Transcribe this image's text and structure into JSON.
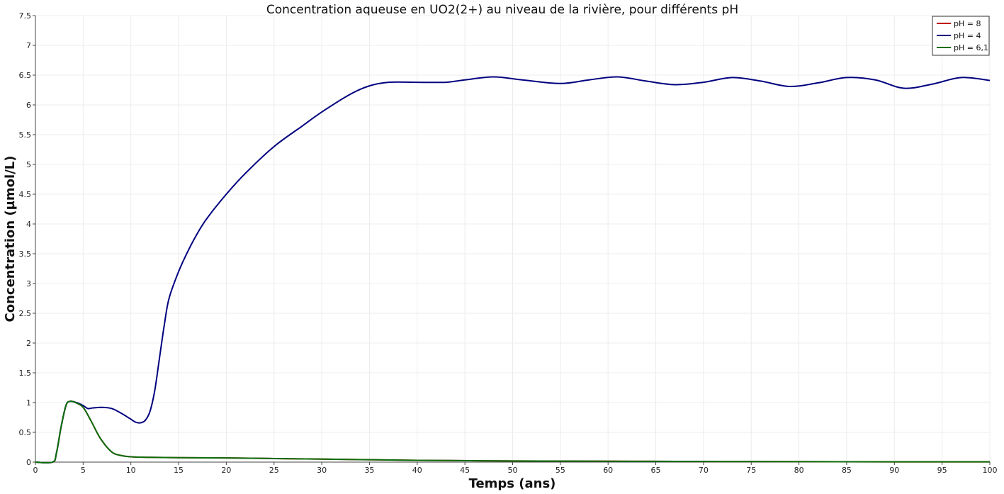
{
  "chart_data": {
    "type": "line",
    "title": "Concentration aqueuse en UO2(2+) au niveau de la rivière, pour différents pH",
    "xlabel": "Temps (ans)",
    "ylabel": "Concentration (µmol/L)",
    "xlim": [
      0,
      100
    ],
    "ylim": [
      0,
      7.5
    ],
    "x_ticks": [
      "0",
      "5",
      "10",
      "15",
      "20",
      "25",
      "30",
      "35",
      "40",
      "45",
      "50",
      "55",
      "60",
      "65",
      "70",
      "75",
      "80",
      "85",
      "90",
      "95",
      "100"
    ],
    "y_ticks": [
      "0",
      "0.5",
      "1",
      "1.5",
      "2",
      "2.5",
      "3",
      "3.5",
      "4",
      "4.5",
      "5",
      "5.5",
      "6",
      "6.5",
      "7",
      "7.5"
    ],
    "grid": true,
    "legend_position": "top-right",
    "series": [
      {
        "name": "pH = 8",
        "color": "#c00000",
        "x": [
          0,
          1.8,
          2.2,
          2.7,
          3.2,
          3.6,
          4.2,
          5,
          5.8,
          6.8,
          8,
          9,
          10,
          12,
          15,
          20,
          25,
          30,
          35,
          40,
          50,
          60,
          70,
          80,
          90,
          100
        ],
        "y": [
          0,
          0,
          0.15,
          0.6,
          0.95,
          1.02,
          1.0,
          0.92,
          0.7,
          0.4,
          0.17,
          0.11,
          0.09,
          0.08,
          0.075,
          0.07,
          0.06,
          0.05,
          0.04,
          0.03,
          0.02,
          0.015,
          0.01,
          0.008,
          0.005,
          0.005
        ]
      },
      {
        "name": "pH = 4",
        "color": "#00007f",
        "x": [
          0,
          1.8,
          2.2,
          2.7,
          3.2,
          3.6,
          4.3,
          5,
          5.5,
          6,
          7,
          8,
          9,
          10,
          10.5,
          11,
          11.5,
          12,
          12.5,
          13,
          13.5,
          14,
          15,
          16,
          17,
          18,
          20,
          22,
          25,
          28,
          30,
          33,
          35,
          37,
          40,
          43,
          45,
          48,
          51,
          55,
          58,
          61,
          64,
          67,
          70,
          73,
          76,
          79,
          82,
          85,
          88,
          91,
          94,
          97,
          100
        ],
        "y": [
          0,
          0,
          0.15,
          0.6,
          0.95,
          1.02,
          1.0,
          0.95,
          0.9,
          0.91,
          0.92,
          0.9,
          0.82,
          0.72,
          0.67,
          0.66,
          0.7,
          0.85,
          1.2,
          1.75,
          2.3,
          2.75,
          3.2,
          3.55,
          3.85,
          4.1,
          4.5,
          4.85,
          5.3,
          5.65,
          5.88,
          6.18,
          6.32,
          6.38,
          6.38,
          6.38,
          6.42,
          6.47,
          6.42,
          6.36,
          6.42,
          6.47,
          6.4,
          6.34,
          6.38,
          6.46,
          6.4,
          6.31,
          6.37,
          6.46,
          6.42,
          6.28,
          6.35,
          6.46,
          6.41
        ]
      },
      {
        "name": "pH = 6,1",
        "color": "#0b6e0b",
        "x": [
          0,
          1.8,
          2.2,
          2.7,
          3.2,
          3.6,
          4.2,
          5,
          5.8,
          6.8,
          8,
          9,
          10,
          12,
          15,
          20,
          25,
          30,
          35,
          40,
          50,
          60,
          70,
          80,
          90,
          100
        ],
        "y": [
          0,
          0,
          0.15,
          0.6,
          0.95,
          1.02,
          1.0,
          0.92,
          0.7,
          0.4,
          0.17,
          0.11,
          0.09,
          0.08,
          0.075,
          0.07,
          0.06,
          0.05,
          0.04,
          0.03,
          0.02,
          0.015,
          0.01,
          0.008,
          0.005,
          0.005
        ]
      }
    ]
  }
}
